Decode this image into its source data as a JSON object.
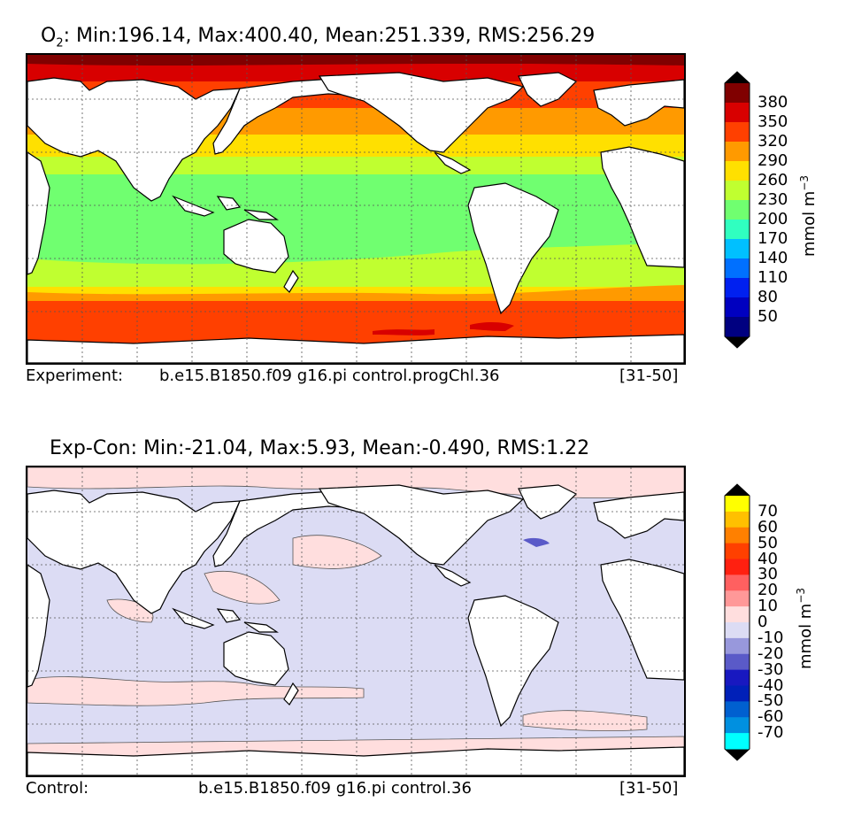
{
  "panel1": {
    "title_prefix": "O",
    "title_sub": "2",
    "title_rest": ": Min:196.14, Max:400.40, Mean:251.339, RMS:256.29",
    "footer_left": "Experiment:",
    "footer_mid": "b.e15.B1850.f09 g16.pi control.progChl.36",
    "footer_right": "[31-50]",
    "colorbar": {
      "unit_main": "mmol m",
      "unit_sup": "−3",
      "labels": [
        "380",
        "350",
        "320",
        "290",
        "260",
        "230",
        "200",
        "170",
        "140",
        "110",
        "80",
        "50"
      ],
      "colors": [
        "#800000",
        "#d80000",
        "#ff4000",
        "#ff9a00",
        "#ffe000",
        "#c0ff30",
        "#70ff70",
        "#30ffc0",
        "#00c0ff",
        "#0070ff",
        "#0020f0",
        "#0000c0",
        "#000080"
      ],
      "over_color": "#000000",
      "under_color": "#000000"
    }
  },
  "panel2": {
    "title": "Exp-Con: Min:-21.04, Max:5.93, Mean:-0.490, RMS:1.22",
    "footer_left": "Control:",
    "footer_mid": "b.e15.B1850.f09 g16.pi control.36",
    "footer_right": "[31-50]",
    "colorbar": {
      "unit_main": "mmol m",
      "unit_sup": "−3",
      "labels": [
        "70",
        "60",
        "50",
        "40",
        "30",
        "20",
        "10",
        "0",
        "-10",
        "-20",
        "-30",
        "-40",
        "-50",
        "-60",
        "-70"
      ],
      "colors": [
        "#ffff00",
        "#ffc000",
        "#ff8000",
        "#ff4000",
        "#ff2010",
        "#ff6060",
        "#ff9898",
        "#ffdede",
        "#dcdcf4",
        "#9898dc",
        "#5a5ac8",
        "#1818c0",
        "#0020b8",
        "#0060d0",
        "#0090e0",
        "#00ffff"
      ],
      "over_color": "#000000",
      "under_color": "#000000"
    }
  }
}
